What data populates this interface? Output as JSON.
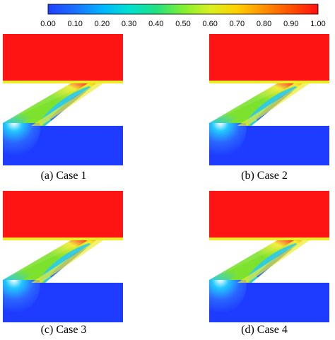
{
  "colorbar": {
    "min": 0.0,
    "max": 1.0,
    "ticks": [
      "0.00",
      "0.10",
      "0.20",
      "0.30",
      "0.40",
      "0.50",
      "0.60",
      "0.70",
      "0.80",
      "0.90",
      "1.00"
    ],
    "colormap": [
      "#2040ff",
      "#1a70ff",
      "#00b4ff",
      "#00e0d0",
      "#20e080",
      "#80f030",
      "#d8f020",
      "#ffd000",
      "#ff9000",
      "#ff5000",
      "#ff1010"
    ]
  },
  "panels": [
    {
      "caption": "(a) Case 1"
    },
    {
      "caption": "(b) Case 2"
    },
    {
      "caption": "(c) Case 3"
    },
    {
      "caption": "(d) Case 4"
    }
  ],
  "colors": {
    "hot": "#ff1414",
    "cold": "#1e3cff",
    "mix": "#7de22e",
    "cyan": "#22c8ff",
    "yellow": "#f0ec2a"
  }
}
